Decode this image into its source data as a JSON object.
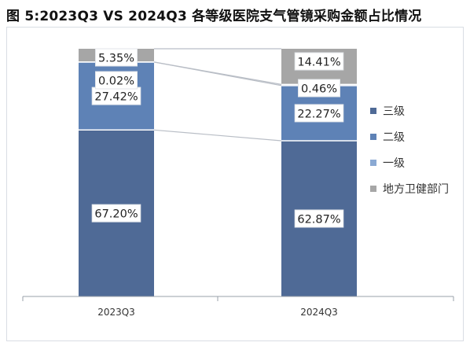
{
  "title": "图 5:2023Q3 VS 2024Q3 各等级医院支气管镜采购金额占比情况",
  "colors": {
    "三级": "#4f6a96",
    "二级": "#5e82b6",
    "一级": "#8aa9d3",
    "地方卫健部门": "#a6a6a6"
  },
  "chart_data": {
    "type": "bar",
    "stacked": true,
    "normalized": true,
    "title": "图 5:2023Q3 VS 2024Q3 各等级医院支气管镜采购金额占比情况",
    "categories": [
      "2023Q3",
      "2024Q3"
    ],
    "series": [
      {
        "name": "三级",
        "values": [
          67.2,
          62.87
        ],
        "labels": [
          "67.20%",
          "62.87%"
        ]
      },
      {
        "name": "二级",
        "values": [
          27.42,
          22.27
        ],
        "labels": [
          "27.42%",
          "22.27%"
        ]
      },
      {
        "name": "一级",
        "values": [
          0.02,
          0.46
        ],
        "labels": [
          "0.02%",
          "0.46%"
        ]
      },
      {
        "name": "地方卫健部门",
        "values": [
          5.35,
          14.41
        ],
        "labels": [
          "5.35%",
          "14.41%"
        ]
      }
    ],
    "ylim": [
      0,
      100
    ],
    "legend": "right",
    "connector_lines": true
  }
}
